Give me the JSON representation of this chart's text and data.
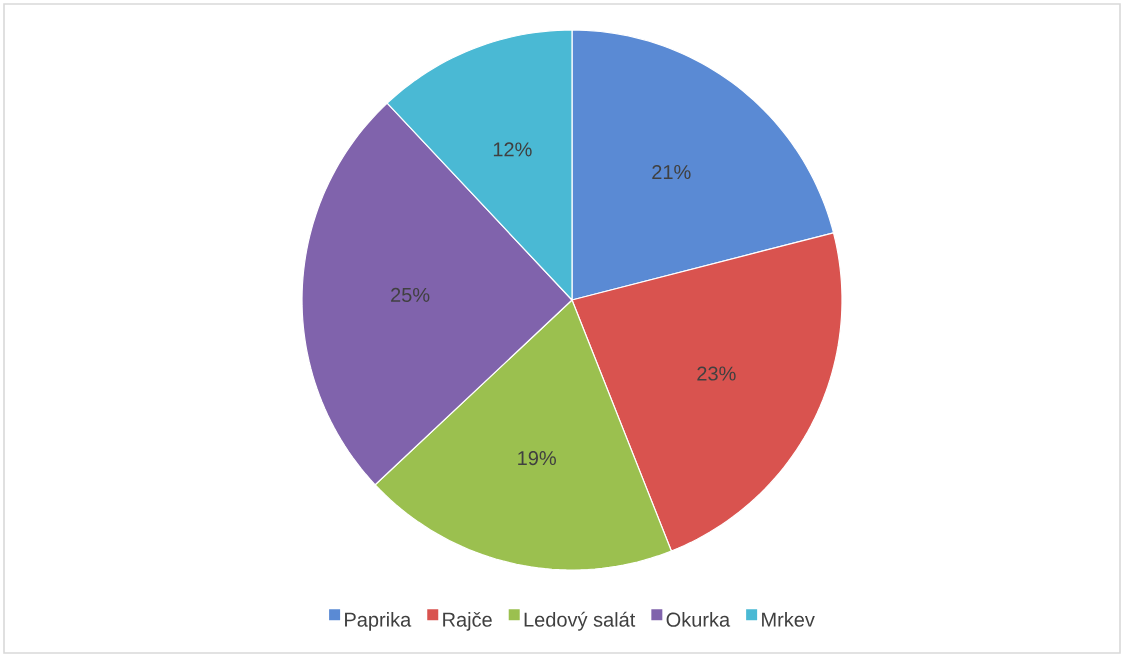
{
  "chart_data": {
    "type": "pie",
    "categories": [
      "Paprika",
      "Rajče",
      "Ledový salát",
      "Okurka",
      "Mrkev"
    ],
    "values": [
      21,
      23,
      19,
      25,
      12
    ],
    "value_labels": [
      "21%",
      "23%",
      "19%",
      "25%",
      "12%"
    ],
    "colors": [
      "#5a8ad4",
      "#d9534f",
      "#9bc04f",
      "#8063ac",
      "#4ab9d4"
    ],
    "legend": "bottom"
  }
}
